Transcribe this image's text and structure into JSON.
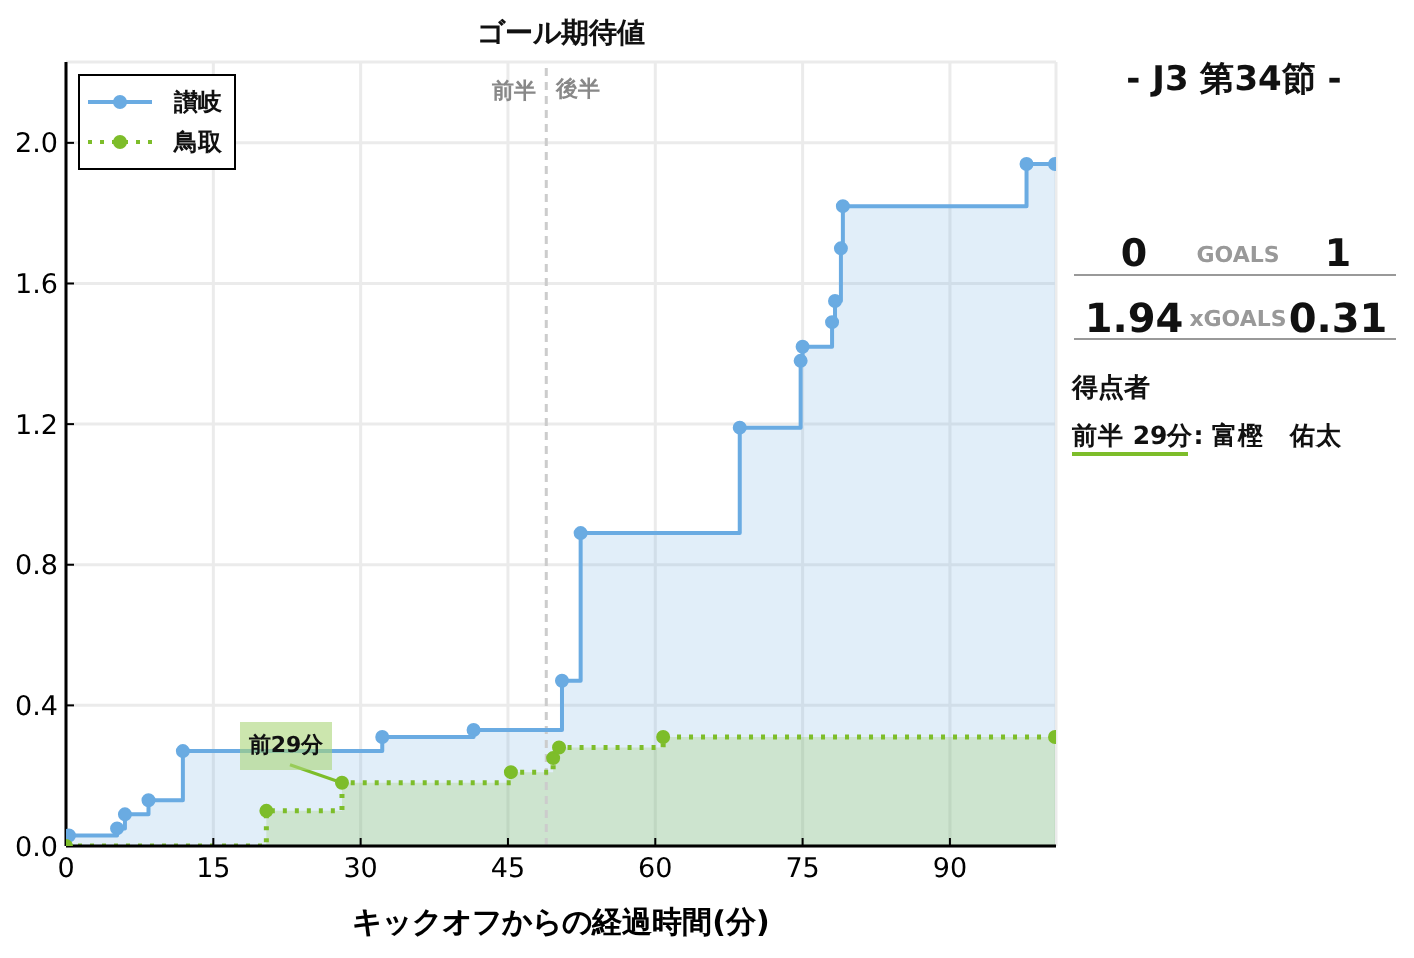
{
  "chart_data": [
    {
      "type": "step",
      "title": "ゴール期待値",
      "xlabel": "キックオフからの経過時間(分)",
      "xlim": [
        0,
        100.8
      ],
      "ylim": [
        0,
        2.23
      ],
      "xticks": [
        0,
        15,
        30,
        45,
        60,
        75,
        90
      ],
      "yticks": [
        {
          "value": 0,
          "label": "0.0"
        },
        0.4,
        0.8,
        1.2,
        1.6,
        {
          "value": 2,
          "label": "2.0"
        }
      ],
      "grid": true,
      "legend": "top left",
      "marker": "circle",
      "series": [
        {
          "name": "讃岐",
          "color": "#6aabe2",
          "line_style": "solid",
          "x": [
            0.3,
            5.2,
            6.0,
            8.4,
            11.9,
            32.2,
            41.5,
            50.5,
            52.4,
            68.6,
            74.8,
            75.0,
            78.0,
            78.3,
            78.9,
            79.1,
            97.8,
            100.7
          ],
          "values": [
            0.03,
            0.05,
            0.09,
            0.13,
            0.27,
            0.31,
            0.33,
            0.47,
            0.89,
            1.19,
            1.38,
            1.42,
            1.49,
            1.55,
            1.7,
            1.82,
            1.94,
            1.94
          ],
          "lower": [
            0,
            0,
            0,
            0,
            0,
            0,
            0,
            0,
            0,
            0,
            0,
            0,
            0,
            0,
            0,
            0,
            0,
            0
          ],
          "upper": [
            0.03,
            0.05,
            0.09,
            0.13,
            0.27,
            0.31,
            0.33,
            0.47,
            0.89,
            1.19,
            1.38,
            1.42,
            1.49,
            1.55,
            1.7,
            1.82,
            1.94,
            1.94
          ]
        },
        {
          "name": "鳥取",
          "color": "#7dbd2a",
          "line_style": "dotted",
          "x": [
            0,
            20.4,
            28.1,
            45.3,
            49.6,
            50.2,
            60.8,
            100.7
          ],
          "values": [
            0,
            0.1,
            0.18,
            0.21,
            0.25,
            0.28,
            0.31,
            0.31
          ],
          "lower": [
            0,
            0,
            0,
            0,
            0,
            0,
            0,
            0
          ],
          "upper": [
            0,
            0.1,
            0.18,
            0.21,
            0.25,
            0.28,
            0.31,
            0.31
          ]
        }
      ],
      "ref_lines": [
        {
          "axis": "x",
          "value": 48.9,
          "label": "前半",
          "color": "#cccccc",
          "line_style": "dashed"
        }
      ],
      "annotations": [
        {
          "text": "前29分",
          "x": 28.1,
          "y": 0.18
        },
        {
          "text": "後半",
          "x": 48.9,
          "y": 2.15
        }
      ]
    },
    {
      "type": "other",
      "title": "- J3 第34節 -",
      "annotations": [
        "0",
        "GOALS",
        "1",
        "1.94",
        "xGOALS",
        "0.31",
        "得点者",
        "前半 29分: 富樫　佑太"
      ]
    }
  ]
}
